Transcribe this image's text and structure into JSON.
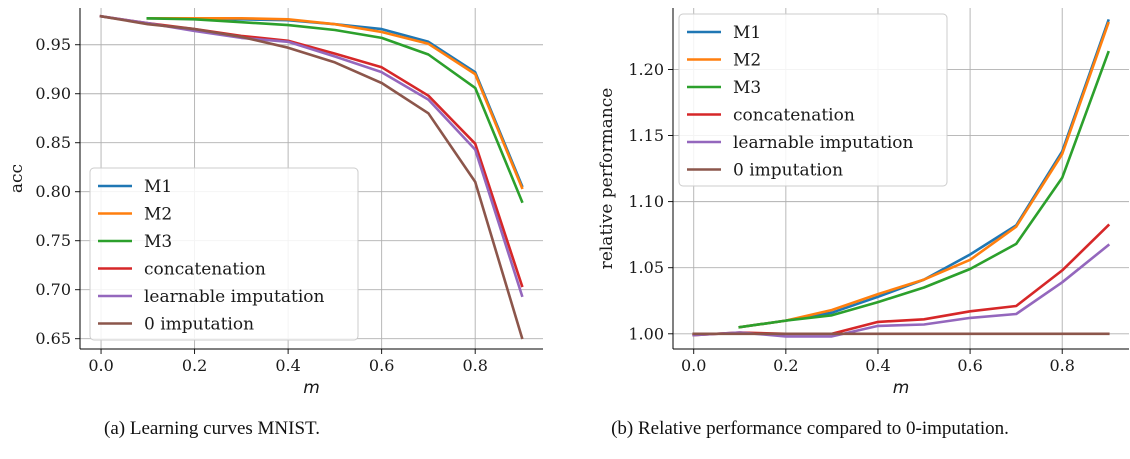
{
  "chart_data": [
    {
      "type": "line",
      "title": "",
      "xlabel": "m",
      "ylabel": "acc",
      "xlim": [
        -0.045,
        0.945
      ],
      "ylim": [
        0.6395,
        0.9875
      ],
      "xticks": [
        "0.0",
        "0.2",
        "0.4",
        "0.6",
        "0.8"
      ],
      "yticks": [
        "0.65",
        "0.70",
        "0.75",
        "0.80",
        "0.85",
        "0.90",
        "0.95"
      ],
      "grid": true,
      "legend_position": "lower-left",
      "series": [
        {
          "name": "M1",
          "color": "#1f77b4",
          "x": [
            0.1,
            0.2,
            0.3,
            0.4,
            0.5,
            0.6,
            0.7,
            0.8,
            0.9
          ],
          "y": [
            0.977,
            0.977,
            0.976,
            0.975,
            0.971,
            0.966,
            0.953,
            0.922,
            0.806
          ]
        },
        {
          "name": "M2",
          "color": "#ff7f0e",
          "x": [
            0.1,
            0.2,
            0.3,
            0.4,
            0.5,
            0.6,
            0.7,
            0.8,
            0.9
          ],
          "y": [
            0.977,
            0.977,
            0.977,
            0.976,
            0.971,
            0.963,
            0.951,
            0.92,
            0.804
          ]
        },
        {
          "name": "M3",
          "color": "#2ca02c",
          "x": [
            0.1,
            0.2,
            0.3,
            0.4,
            0.5,
            0.6,
            0.7,
            0.8,
            0.9
          ],
          "y": [
            0.977,
            0.976,
            0.973,
            0.97,
            0.965,
            0.957,
            0.94,
            0.906,
            0.79
          ]
        },
        {
          "name": "concatenation",
          "color": "#d62728",
          "x": [
            0.0,
            0.1,
            0.2,
            0.3,
            0.4,
            0.5,
            0.6,
            0.7,
            0.8,
            0.9
          ],
          "y": [
            0.979,
            0.972,
            0.966,
            0.959,
            0.954,
            0.941,
            0.927,
            0.898,
            0.849,
            0.704
          ]
        },
        {
          "name": "learnable imputation",
          "color": "#9467bd",
          "x": [
            0.0,
            0.1,
            0.2,
            0.3,
            0.4,
            0.5,
            0.6,
            0.7,
            0.8,
            0.9
          ],
          "y": [
            0.979,
            0.972,
            0.964,
            0.957,
            0.953,
            0.938,
            0.922,
            0.894,
            0.843,
            0.694
          ]
        },
        {
          "name": "0 imputation",
          "color": "#8c564b",
          "x": [
            0.0,
            0.1,
            0.2,
            0.3,
            0.4,
            0.5,
            0.6,
            0.7,
            0.8,
            0.9
          ],
          "y": [
            0.979,
            0.971,
            0.966,
            0.958,
            0.947,
            0.932,
            0.911,
            0.88,
            0.81,
            0.651
          ]
        }
      ]
    },
    {
      "type": "line",
      "title": "",
      "xlabel": "m",
      "ylabel": "relative performance",
      "xlim": [
        -0.045,
        0.945
      ],
      "ylim": [
        0.9885,
        1.2465
      ],
      "xticks": [
        "0.0",
        "0.2",
        "0.4",
        "0.6",
        "0.8"
      ],
      "yticks": [
        "1.00",
        "1.05",
        "1.10",
        "1.15",
        "1.20"
      ],
      "grid": true,
      "legend_position": "upper-left",
      "series": [
        {
          "name": "M1",
          "color": "#1f77b4",
          "x": [
            0.1,
            0.2,
            0.3,
            0.4,
            0.5,
            0.6,
            0.7,
            0.8,
            0.9
          ],
          "y": [
            1.005,
            1.01,
            1.016,
            1.028,
            1.041,
            1.06,
            1.082,
            1.138,
            1.237
          ]
        },
        {
          "name": "M2",
          "color": "#ff7f0e",
          "x": [
            0.1,
            0.2,
            0.3,
            0.4,
            0.5,
            0.6,
            0.7,
            0.8,
            0.9
          ],
          "y": [
            1.005,
            1.01,
            1.018,
            1.03,
            1.041,
            1.056,
            1.081,
            1.136,
            1.235
          ]
        },
        {
          "name": "M3",
          "color": "#2ca02c",
          "x": [
            0.1,
            0.2,
            0.3,
            0.4,
            0.5,
            0.6,
            0.7,
            0.8,
            0.9
          ],
          "y": [
            1.005,
            1.01,
            1.014,
            1.024,
            1.035,
            1.049,
            1.068,
            1.118,
            1.213
          ]
        },
        {
          "name": "concatenation",
          "color": "#d62728",
          "x": [
            0.0,
            0.1,
            0.2,
            0.3,
            0.4,
            0.5,
            0.6,
            0.7,
            0.8,
            0.9
          ],
          "y": [
            0.999,
            1.001,
            1.0,
            1.0,
            1.009,
            1.011,
            1.017,
            1.021,
            1.048,
            1.082
          ]
        },
        {
          "name": "learnable imputation",
          "color": "#9467bd",
          "x": [
            0.0,
            0.1,
            0.2,
            0.3,
            0.4,
            0.5,
            0.6,
            0.7,
            0.8,
            0.9
          ],
          "y": [
            0.999,
            1.001,
            0.998,
            0.998,
            1.006,
            1.007,
            1.012,
            1.015,
            1.039,
            1.067
          ]
        },
        {
          "name": "0 imputation",
          "color": "#8c564b",
          "x": [
            0.0,
            0.1,
            0.2,
            0.3,
            0.4,
            0.5,
            0.6,
            0.7,
            0.8,
            0.9
          ],
          "y": [
            1.0,
            1.0,
            1.0,
            1.0,
            1.0,
            1.0,
            1.0,
            1.0,
            1.0,
            1.0
          ]
        }
      ]
    }
  ],
  "captions": {
    "a": "(a) Learning curves MNIST.",
    "b": "(b) Relative performance compared to 0-imputation."
  }
}
